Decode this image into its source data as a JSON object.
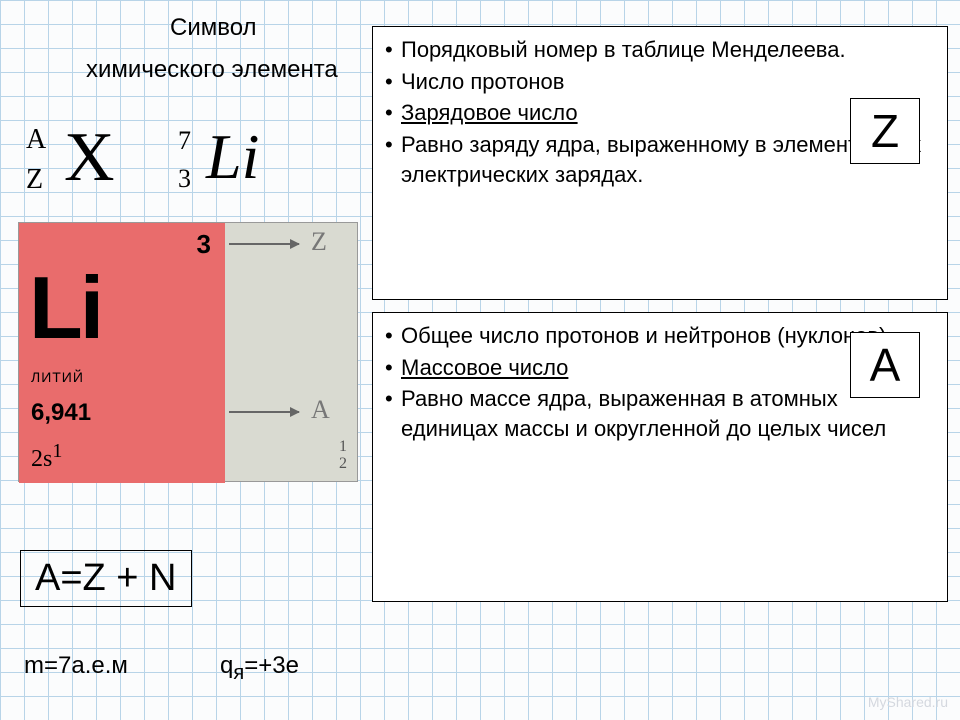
{
  "title": {
    "line1": "Символ",
    "line2": "химического элемента"
  },
  "notation": {
    "A": "A",
    "Z": "Z",
    "X": "X",
    "exA": "7",
    "exZ": "3",
    "exSym": "Li"
  },
  "element": {
    "atomic_number": "3",
    "symbol": "Li",
    "name": "ЛИТИЙ",
    "mass": "6,941",
    "econf_base": "2s",
    "econf_sup": "1",
    "shells": [
      "1",
      "2"
    ]
  },
  "pointers": {
    "Z": "Z",
    "A": "A"
  },
  "boxZ": {
    "letter": "Z",
    "items": [
      {
        "text": "Порядковый номер в таблице Менделеева.",
        "u": false,
        "space": true
      },
      {
        "text": "Число протонов",
        "u": false,
        "space": false
      },
      {
        "text": "Зарядовое число",
        "u": true,
        "space": true
      },
      {
        "text": "Равно заряду ядра, выраженному в элементарных электрических зарядах.",
        "u": false,
        "space": false
      }
    ]
  },
  "boxA": {
    "letter": "A",
    "items": [
      {
        "text": "Общее число протонов и нейтронов (нуклонов)",
        "u": false,
        "space": true
      },
      {
        "text": "Массовое число",
        "u": true,
        "space": true
      },
      {
        "text": "Равно массе ядра, выраженная в атомных единицах массы и округленной до целых чисел",
        "u": false,
        "space": true
      }
    ]
  },
  "equation": "A=Z + N",
  "footer": {
    "mass_eq": "m=7а.е.м",
    "charge_prefix": "q",
    "charge_sub": "я",
    "charge_suffix": "=+3e"
  },
  "watermark": "MyShared.ru",
  "colors": {
    "grid": "#b8d4e8",
    "card_bg": "#d9dad1",
    "card_red": "#e96c6c",
    "arrow": "#666"
  }
}
